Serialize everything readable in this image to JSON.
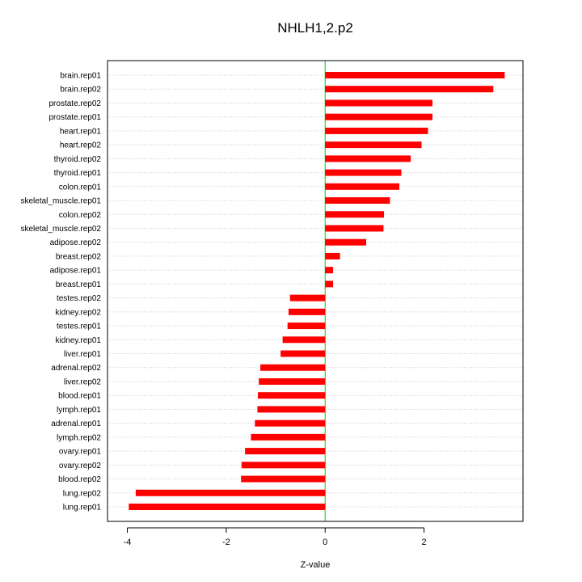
{
  "chart_data": {
    "type": "bar",
    "orientation": "horizontal",
    "title": "NHLH1,2.p2",
    "xlabel": "Z-value",
    "ylabel": "",
    "xlim": [
      -4.4,
      4.0
    ],
    "xticks": [
      -4,
      -2,
      0,
      2
    ],
    "xtick_labels": [
      "-4",
      "-2",
      "0",
      "2"
    ],
    "grid": "horizontal dotted",
    "zero_line_color": "#00cc00",
    "bar_color": "#ff0000",
    "categories": [
      "brain.rep01",
      "brain.rep02",
      "prostate.rep02",
      "prostate.rep01",
      "heart.rep01",
      "heart.rep02",
      "thyroid.rep02",
      "thyroid.rep01",
      "colon.rep01",
      "skeletal_muscle.rep01",
      "colon.rep02",
      "skeletal_muscle.rep02",
      "adipose.rep02",
      "breast.rep02",
      "adipose.rep01",
      "breast.rep01",
      "testes.rep02",
      "kidney.rep02",
      "testes.rep01",
      "kidney.rep01",
      "liver.rep01",
      "adrenal.rep02",
      "liver.rep02",
      "blood.rep01",
      "lymph.rep01",
      "adrenal.rep01",
      "lymph.rep02",
      "ovary.rep01",
      "ovary.rep02",
      "blood.rep02",
      "lung.rep02",
      "lung.rep01"
    ],
    "values": [
      3.63,
      3.4,
      2.17,
      2.17,
      2.08,
      1.95,
      1.73,
      1.54,
      1.5,
      1.31,
      1.19,
      1.18,
      0.83,
      0.3,
      0.16,
      0.16,
      -0.71,
      -0.74,
      -0.76,
      -0.86,
      -0.9,
      -1.31,
      -1.34,
      -1.36,
      -1.37,
      -1.42,
      -1.5,
      -1.62,
      -1.69,
      -1.7,
      -3.83,
      -3.97
    ]
  }
}
